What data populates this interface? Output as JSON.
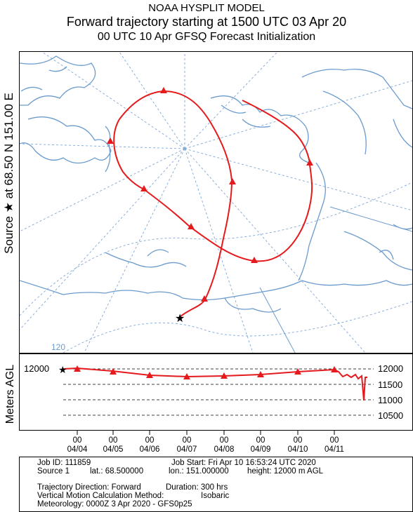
{
  "header": {
    "model": "NOAA HYSPLIT MODEL",
    "title": "Forward trajectory starting at 1500 UTC 03 Apr 20",
    "subtitle": "00 UTC 10 Apr    GFSQ  Forecast Initialization"
  },
  "map": {
    "source_label": "Source ★  at    68.50 N  151.00 E",
    "grid_label": "120",
    "colors": {
      "trajectory": "#e41a1c",
      "coast": "#6b9bcd",
      "grid": "#7fa6d6",
      "frame": "#000000"
    },
    "marker_icon": "triangle-marker-icon",
    "source_icon": "star-icon"
  },
  "profile": {
    "ylabel": "Meters AGL",
    "left_tick": "12000",
    "right_ticks": [
      "12000",
      "11500",
      "11000",
      "10500"
    ],
    "x_ticks": [
      {
        "hour": "00",
        "date": "04/04"
      },
      {
        "hour": "00",
        "date": "04/05"
      },
      {
        "hour": "00",
        "date": "04/06"
      },
      {
        "hour": "00",
        "date": "04/07"
      },
      {
        "hour": "00",
        "date": "04/08"
      },
      {
        "hour": "00",
        "date": "04/09"
      },
      {
        "hour": "00",
        "date": "04/10"
      },
      {
        "hour": "00",
        "date": "04/11"
      }
    ]
  },
  "chart_data": {
    "type": "line",
    "ylabel": "Meters AGL",
    "ylim": [
      10500,
      12000
    ],
    "x": [
      "04/04",
      "04/05",
      "04/06",
      "04/07",
      "04/08",
      "04/09",
      "04/10",
      "04/11"
    ],
    "series": [
      {
        "values": [
          12000,
          11950,
          11900,
          11880,
          11890,
          11910,
          11960,
          11980
        ]
      }
    ]
  },
  "footer": {
    "job_id": "Job ID: 111859",
    "job_start": "Job Start: Fri Apr 10 16:53:24 UTC 2020",
    "source": "Source 1",
    "lat": "lat.: 68.500000",
    "lon": "lon.: 151.000000",
    "height": "height: 12000 m AGL",
    "direction": "Trajectory Direction: Forward",
    "duration": "Duration: 300 hrs",
    "vertical": "Vertical Motion Calculation Method:",
    "vertical_value": "Isobaric",
    "meteorology": "Meteorology: 0000Z  3 Apr 2020 - GFS0p25"
  }
}
